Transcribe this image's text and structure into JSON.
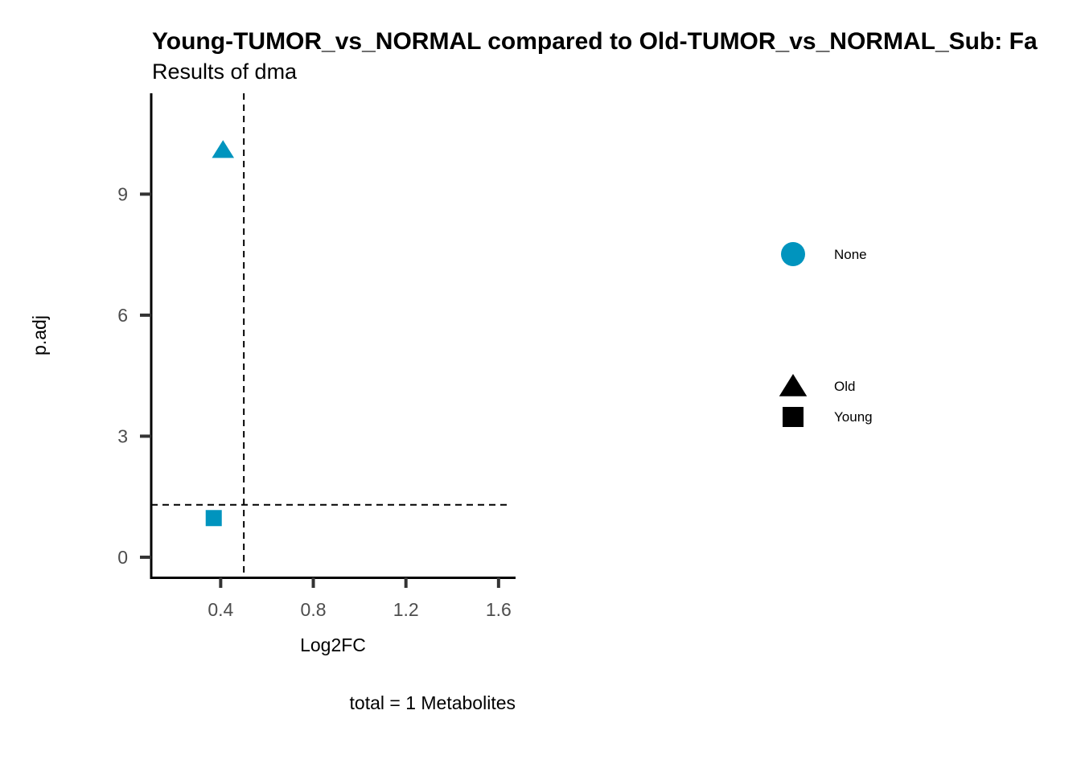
{
  "chart_data": {
    "type": "scatter",
    "title": "Young-TUMOR_vs_NORMAL compared to Old-TUMOR_vs_NORMAL_Sub: Fa",
    "subtitle": "Results of dma",
    "xlabel": "Log2FC",
    "ylabel": "p.adj",
    "caption": "total = 1 Metabolites",
    "xlim": [
      0.1,
      1.67
    ],
    "ylim": [
      -0.5,
      11.5
    ],
    "x_ticks": [
      0.4,
      0.8,
      1.2,
      1.6
    ],
    "x_tick_labels": [
      "0.4",
      "0.8",
      "1.2",
      "1.6"
    ],
    "y_ticks": [
      0,
      3,
      6,
      9
    ],
    "y_tick_labels": [
      "0",
      "3",
      "6",
      "9"
    ],
    "vline": 0.5,
    "hline": 1.3,
    "grid": false,
    "legend_position": "right",
    "points": [
      {
        "x": 0.41,
        "y": 10.1,
        "shape": "triangle",
        "group": "Old",
        "color_group": "None",
        "color": "#0094BE"
      },
      {
        "x": 0.37,
        "y": 0.97,
        "shape": "square",
        "group": "Young",
        "color_group": "None",
        "color": "#0094BE"
      }
    ],
    "legend": {
      "color": [
        {
          "label": "None",
          "color": "#0094BE"
        }
      ],
      "shape": [
        {
          "label": "Old",
          "shape": "triangle"
        },
        {
          "label": "Young",
          "shape": "square"
        }
      ]
    }
  }
}
